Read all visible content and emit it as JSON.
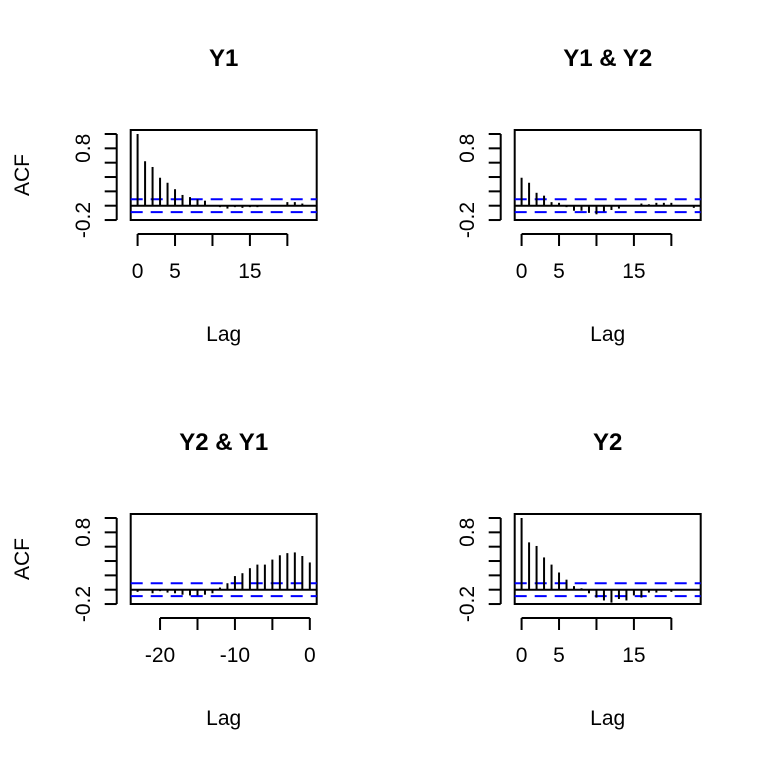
{
  "chart_data": [
    {
      "type": "bar",
      "title": "Y1",
      "xlabel": "Lag",
      "ylabel": "ACF",
      "xlim": [
        0,
        23
      ],
      "ylim": [
        -0.2,
        1.0
      ],
      "x_tick_labels": [
        "0",
        "5",
        "15"
      ],
      "x_ticks": [
        0,
        5,
        10,
        15,
        20
      ],
      "y_tick_labels": [
        "0.8",
        "-0.2"
      ],
      "y_ticks": [
        -0.2,
        0,
        0.2,
        0.4,
        0.6,
        0.8,
        1.0
      ],
      "confidence_band": 0.09,
      "band_color": "#0000ff",
      "lags": [
        0,
        1,
        2,
        3,
        4,
        5,
        6,
        7,
        8,
        9,
        10,
        11,
        12,
        13,
        14,
        15,
        16,
        17,
        18,
        19,
        20,
        21,
        22
      ],
      "values": [
        1.0,
        0.62,
        0.54,
        0.39,
        0.32,
        0.23,
        0.15,
        0.12,
        0.09,
        0.07,
        0.0,
        -0.02,
        -0.04,
        -0.02,
        -0.03,
        -0.02,
        -0.02,
        -0.01,
        0.0,
        0.01,
        0.05,
        0.05,
        0.03
      ]
    },
    {
      "type": "bar",
      "title": "Y1 & Y2",
      "xlabel": "Lag",
      "ylabel": "",
      "xlim": [
        0,
        23
      ],
      "ylim": [
        -0.2,
        1.0
      ],
      "x_tick_labels": [
        "0",
        "5",
        "15"
      ],
      "x_ticks": [
        0,
        5,
        10,
        15,
        20
      ],
      "y_tick_labels": [
        "0.8",
        "-0.2"
      ],
      "y_ticks": [
        -0.2,
        0,
        0.2,
        0.4,
        0.6,
        0.8,
        1.0
      ],
      "confidence_band": 0.09,
      "band_color": "#0000ff",
      "lags": [
        0,
        1,
        2,
        3,
        4,
        5,
        6,
        7,
        8,
        9,
        10,
        11,
        12,
        13,
        14,
        15,
        16,
        17,
        18,
        19,
        20,
        21,
        22,
        23
      ],
      "values": [
        0.39,
        0.32,
        0.18,
        0.14,
        0.05,
        0.04,
        -0.02,
        -0.07,
        -0.07,
        -0.1,
        -0.12,
        -0.08,
        -0.06,
        -0.04,
        -0.01,
        0.0,
        0.03,
        0.02,
        0.04,
        0.04,
        0.04,
        0.0,
        0.0,
        -0.03
      ]
    },
    {
      "type": "bar",
      "title": "Y2 & Y1",
      "xlabel": "Lag",
      "ylabel": "ACF",
      "xlim": [
        -23,
        0
      ],
      "ylim": [
        -0.2,
        1.0
      ],
      "x_tick_labels": [
        "-20",
        "-10",
        "0"
      ],
      "x_ticks": [
        -20,
        -15,
        -10,
        -5,
        0
      ],
      "y_tick_labels": [
        "0.8",
        "-0.2"
      ],
      "y_ticks": [
        -0.2,
        0,
        0.2,
        0.4,
        0.6,
        0.8,
        1.0
      ],
      "confidence_band": 0.09,
      "band_color": "#0000ff",
      "lags": [
        -23,
        -22,
        -21,
        -20,
        -19,
        -18,
        -17,
        -16,
        -15,
        -14,
        -13,
        -12,
        -11,
        -10,
        -9,
        -8,
        -7,
        -6,
        -5,
        -4,
        -3,
        -2,
        -1,
        0
      ],
      "values": [
        -0.03,
        -0.01,
        -0.05,
        -0.02,
        -0.04,
        -0.05,
        -0.07,
        -0.08,
        -0.08,
        -0.07,
        -0.05,
        0.03,
        0.09,
        0.19,
        0.23,
        0.3,
        0.35,
        0.35,
        0.42,
        0.48,
        0.51,
        0.52,
        0.47,
        0.38
      ]
    },
    {
      "type": "bar",
      "title": "Y2",
      "xlabel": "Lag",
      "ylabel": "",
      "xlim": [
        0,
        23
      ],
      "ylim": [
        -0.2,
        1.0
      ],
      "x_tick_labels": [
        "0",
        "5",
        "15"
      ],
      "x_ticks": [
        0,
        5,
        10,
        15,
        20
      ],
      "y_tick_labels": [
        "0.8",
        "-0.2"
      ],
      "y_ticks": [
        -0.2,
        0,
        0.2,
        0.4,
        0.6,
        0.8,
        1.0
      ],
      "confidence_band": 0.09,
      "band_color": "#0000ff",
      "lags": [
        0,
        1,
        2,
        3,
        4,
        5,
        6,
        7,
        8,
        9,
        10,
        11,
        12,
        13,
        14,
        15,
        16,
        17,
        18,
        19,
        20,
        21,
        22,
        23
      ],
      "values": [
        1.0,
        0.66,
        0.61,
        0.45,
        0.35,
        0.24,
        0.14,
        0.05,
        0.02,
        -0.05,
        -0.11,
        -0.15,
        -0.18,
        -0.13,
        -0.15,
        -0.08,
        -0.11,
        -0.04,
        -0.04,
        -0.01,
        -0.03,
        0.0,
        0.0,
        0.0
      ]
    }
  ]
}
